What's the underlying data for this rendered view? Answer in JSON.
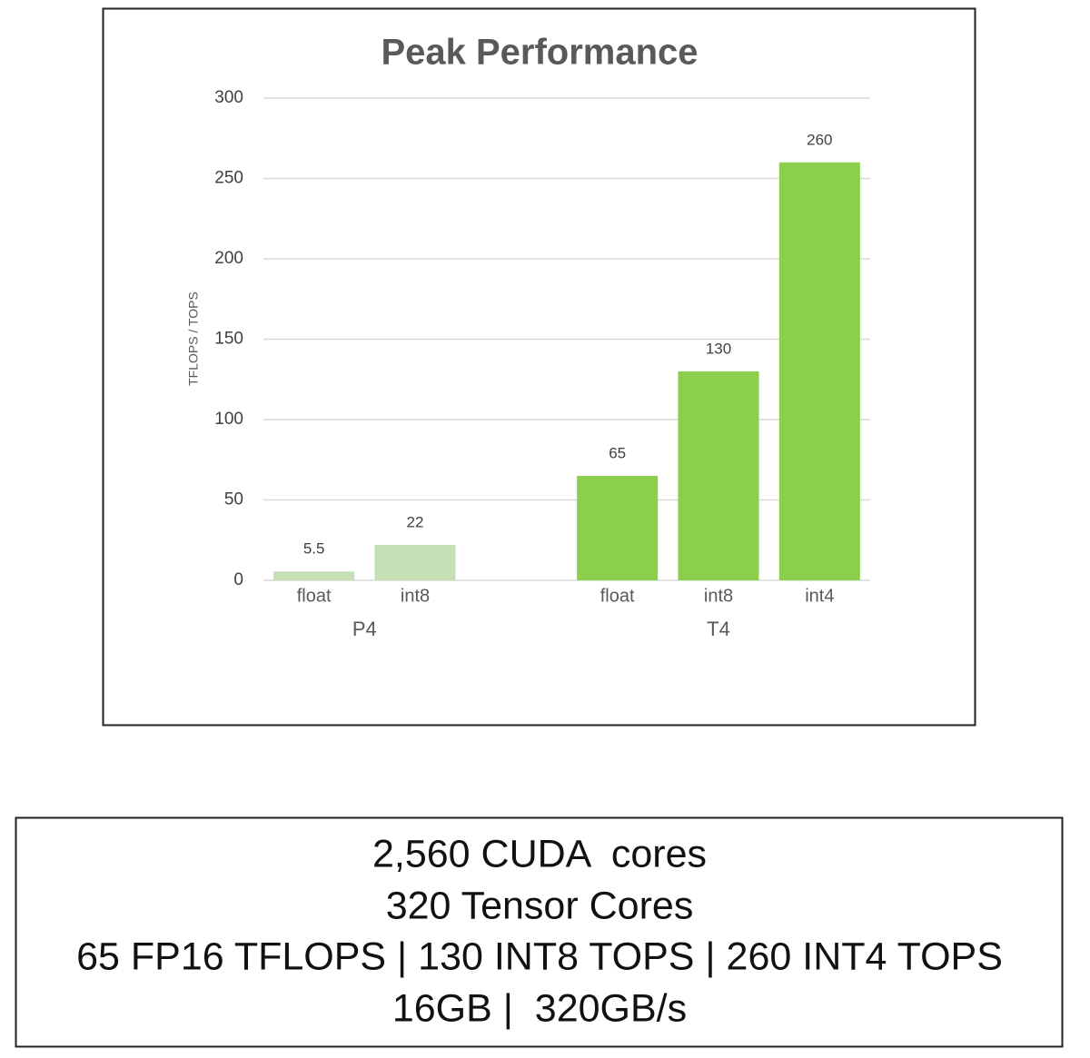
{
  "chart_data": {
    "type": "bar",
    "title": "Peak Performance",
    "y_label": "TFLOPS / TOPS",
    "ylim": [
      0,
      300
    ],
    "yticks": [
      0,
      50,
      100,
      150,
      200,
      250,
      300
    ],
    "grid": true,
    "groups": [
      {
        "label": "P4",
        "color": "#c5e0b4",
        "categories": [
          "float",
          "int8"
        ],
        "values": [
          5.5,
          22
        ]
      },
      {
        "label": "T4",
        "color": "#8ccf4d",
        "categories": [
          "float",
          "int8",
          "int4"
        ],
        "values": [
          65,
          130,
          260
        ]
      }
    ]
  },
  "specs": {
    "lines": [
      "2,560 CUDA  cores",
      "320 Tensor Cores",
      "65 FP16 TFLOPS | 130 INT8 TOPS | 260 INT4 TOPS",
      "16GB |  320GB/s"
    ]
  }
}
